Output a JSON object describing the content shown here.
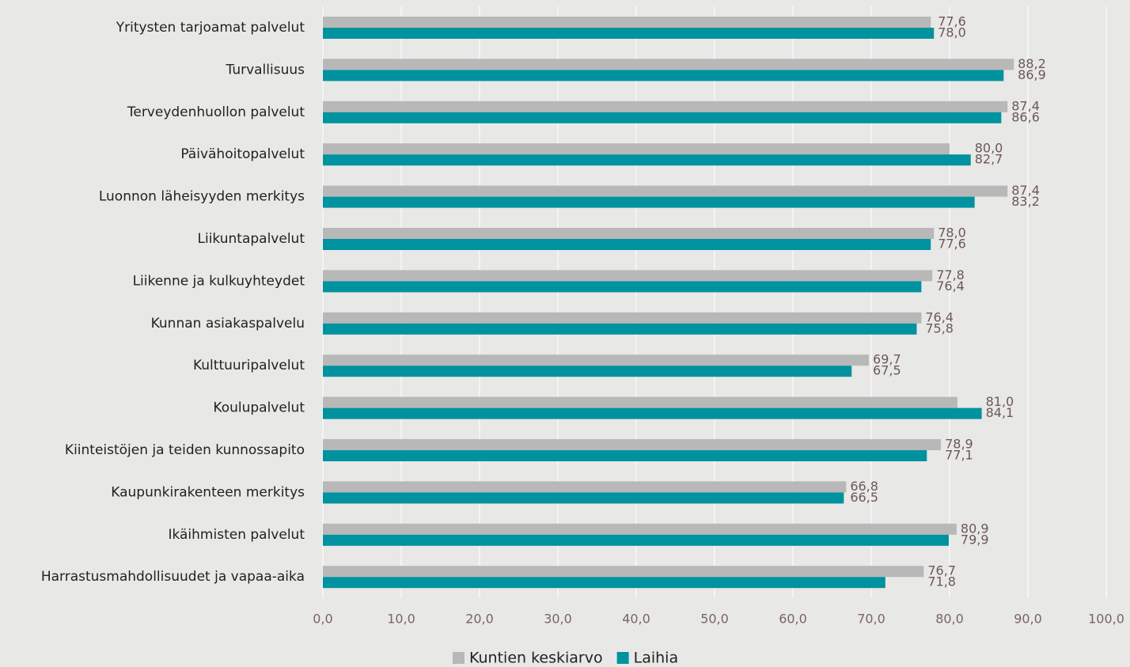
{
  "chart_data": {
    "type": "barh",
    "categories": [
      "Yritysten tarjoamat palvelut",
      "Turvallisuus",
      "Terveydenhuollon palvelut",
      "Päivähoitopalvelut",
      "Luonnon läheisyyden merkitys",
      "Liikuntapalvelut",
      "Liikenne ja kulkuyhteydet",
      "Kunnan asiakaspalvelu",
      "Kulttuuripalvelut",
      "Koulupalvelut",
      "Kiinteistöjen ja teiden kunnossapito",
      "Kaupunkirakenteen merkitys",
      "Ikäihmisten palvelut",
      "Harrastusmahdollisuudet ja vapaa-aika"
    ],
    "series": [
      {
        "name": "Kuntien keskiarvo",
        "color": "#b8b8b8",
        "values": [
          77.6,
          88.2,
          87.4,
          80.0,
          87.4,
          78.0,
          77.8,
          76.4,
          69.7,
          81.0,
          78.9,
          66.8,
          80.9,
          76.7
        ],
        "value_labels": [
          "77,6",
          "88,2",
          "87,4",
          "80,0",
          "87,4",
          "78,0",
          "77,8",
          "76,4",
          "69,7",
          "81,0",
          "78,9",
          "66,8",
          "80,9",
          "76,7"
        ]
      },
      {
        "name": "Laihia",
        "color": "#00929f",
        "values": [
          78.0,
          86.9,
          86.6,
          82.7,
          83.2,
          77.6,
          76.4,
          75.8,
          67.5,
          84.1,
          77.1,
          66.5,
          79.9,
          71.8
        ],
        "value_labels": [
          "78,0",
          "86,9",
          "86,6",
          "82,7",
          "83,2",
          "77,6",
          "76,4",
          "75,8",
          "67,5",
          "84,1",
          "77,1",
          "66,5",
          "79,9",
          "71,8"
        ]
      }
    ],
    "xlim": [
      0,
      100
    ],
    "xticks": [
      {
        "value": 0,
        "label": "0,0"
      },
      {
        "value": 10,
        "label": "10,0"
      },
      {
        "value": 20,
        "label": "20,0"
      },
      {
        "value": 30,
        "label": "30,0"
      },
      {
        "value": 40,
        "label": "40,0"
      },
      {
        "value": 50,
        "label": "50,0"
      },
      {
        "value": 60,
        "label": "60,0"
      },
      {
        "value": 70,
        "label": "70,0"
      },
      {
        "value": 80,
        "label": "80,0"
      },
      {
        "value": 90,
        "label": "90,0"
      },
      {
        "value": 100,
        "label": "100,0"
      }
    ],
    "grid": true,
    "legend": "bottom"
  }
}
